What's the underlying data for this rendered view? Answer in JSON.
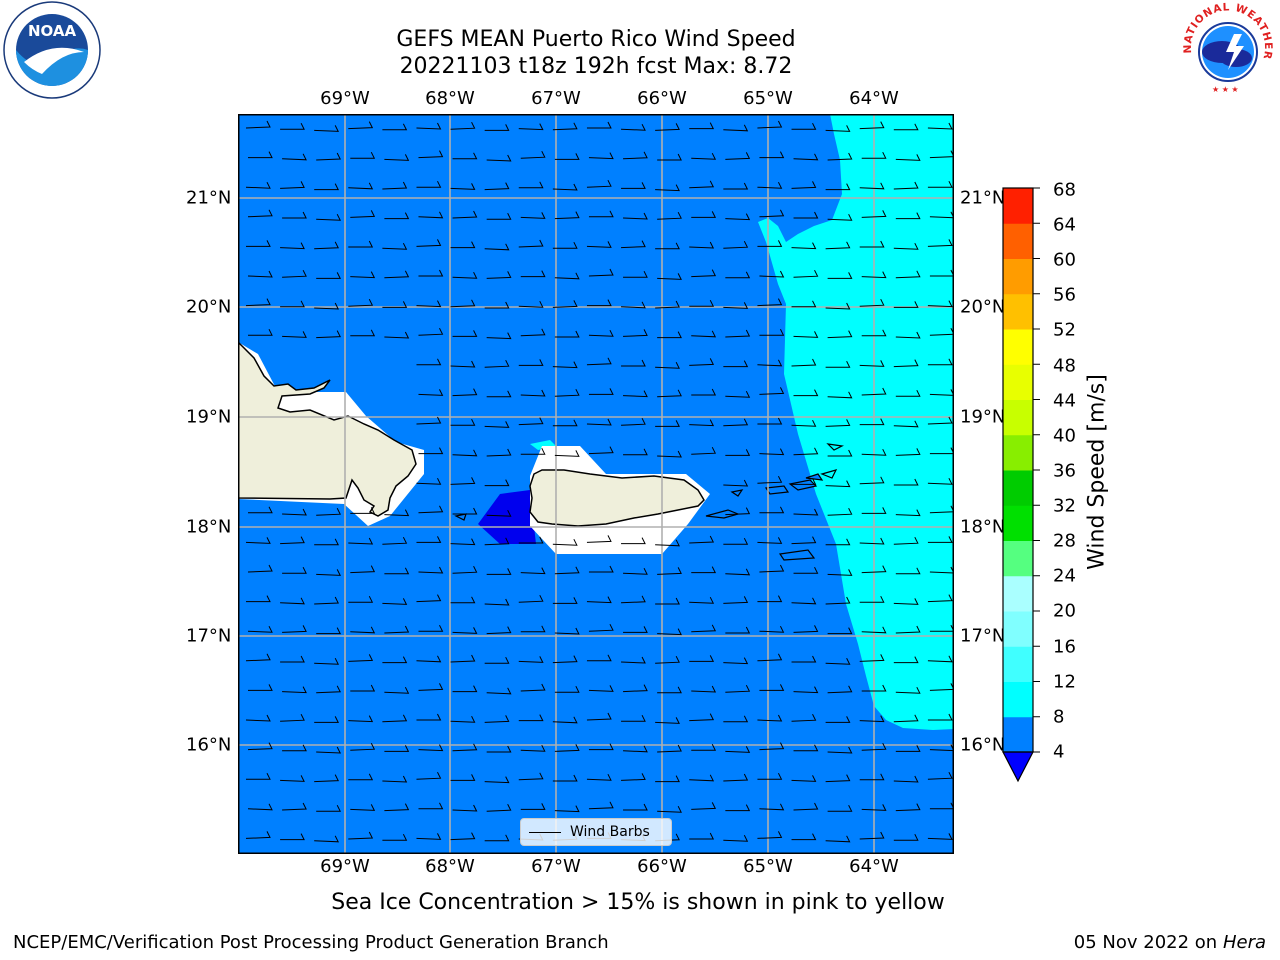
{
  "header": {
    "title_line1": "GEFS MEAN Puerto Rico Wind Speed",
    "title_line2": "20221103 t18z 192h fcst   Max: 8.72"
  },
  "map": {
    "lon_labels": [
      "69°W",
      "68°W",
      "67°W",
      "66°W",
      "65°W",
      "64°W"
    ],
    "lon_values": [
      -69,
      -68,
      -67,
      -66,
      -65,
      -64
    ],
    "lat_labels": [
      "21°N",
      "20°N",
      "19°N",
      "18°N",
      "17°N",
      "16°N"
    ],
    "lat_values": [
      21,
      20,
      19,
      18,
      17,
      16
    ],
    "extent": {
      "lon_min": -70,
      "lon_max": -63.25,
      "lat_min": 15.0,
      "lat_max": 21.75
    },
    "land_color": "#efefdb",
    "grid_color": "#b0b0b0",
    "barb_direction": "easterly (from east)",
    "legend_label": "Wind Barbs"
  },
  "colorbar": {
    "ticks": [
      "68",
      "64",
      "60",
      "56",
      "52",
      "48",
      "44",
      "40",
      "36",
      "32",
      "28",
      "24",
      "20",
      "16",
      "12",
      "8",
      "4"
    ],
    "colors_low_to_high": [
      "#0080ff",
      "#00ffff",
      "#40ffff",
      "#80ffff",
      "#aaffff",
      "#55ff80",
      "#00e000",
      "#00cc00",
      "#40dd00",
      "#88ee00",
      "#c8ff00",
      "#e8ff00",
      "#ffff00",
      "#ffe000",
      "#ffc000",
      "#ff9c00",
      "#ff7a00",
      "#ff5000",
      "#ff2a00",
      "#ff0000"
    ],
    "under_color": "#0000ff",
    "label": "Wind Speed [m/s]"
  },
  "footer": {
    "sea_ice_note": "Sea Ice Concentration > 15% is shown in pink to yellow",
    "producer": "NCEP/EMC/Verification Post Processing Product Generation Branch",
    "date": "05 Nov 2022 on",
    "machine": "Hera"
  },
  "logos": {
    "left": "noaa-logo",
    "left_text": "NOAA",
    "right": "national-weather-service-logo",
    "right_text": "NATIONAL WEATHER SERVICE"
  }
}
